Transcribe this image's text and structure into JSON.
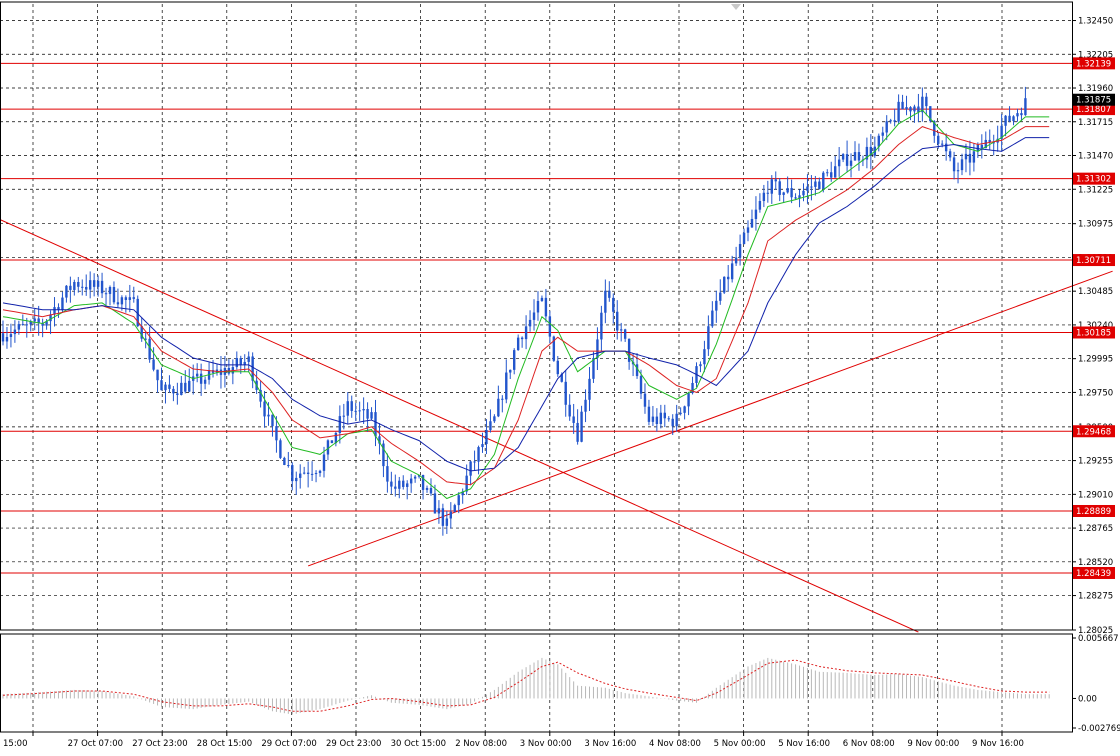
{
  "chart_data": {
    "type": "line",
    "instrument_view": "candlestick",
    "main_panel": {
      "ylim": [
        1.28025,
        1.3257
      ],
      "y_ticks": [
        "1.32450",
        "1.32205",
        "1.31960",
        "1.31715",
        "1.31470",
        "1.31225",
        "1.30975",
        "1.30730",
        "1.30485",
        "1.30240",
        "1.29995",
        "1.29750",
        "1.29500",
        "1.29255",
        "1.29010",
        "1.28765",
        "1.28520",
        "1.28275",
        "1.28025"
      ],
      "current_price": "1.31875",
      "horizontal_levels": [
        "1.32139",
        "1.31807",
        "1.31302",
        "1.30711",
        "1.30185",
        "1.29468",
        "1.28889",
        "1.28439"
      ],
      "level_color": "#e00000",
      "trendlines": [
        {
          "from_bar": -5,
          "from_price": 1.3106,
          "to_bar": 231,
          "to_price": 1.2801
        },
        {
          "from_bar": 77,
          "from_price": 1.2849,
          "to_bar": 280,
          "to_price": 1.3063
        }
      ],
      "price_series": {
        "name": "price",
        "color": "#2255cc",
        "points": [
          [
            0,
            1.3018
          ],
          [
            10,
            1.3025
          ],
          [
            18,
            1.3055
          ],
          [
            25,
            1.305
          ],
          [
            33,
            1.3038
          ],
          [
            40,
            1.2975
          ],
          [
            48,
            1.2982
          ],
          [
            55,
            1.299
          ],
          [
            62,
            1.2998
          ],
          [
            68,
            1.2945
          ],
          [
            73,
            1.2915
          ],
          [
            80,
            1.2922
          ],
          [
            87,
            1.2965
          ],
          [
            93,
            1.2955
          ],
          [
            98,
            1.2905
          ],
          [
            105,
            1.291
          ],
          [
            112,
            1.2878
          ],
          [
            118,
            1.292
          ],
          [
            124,
            1.2955
          ],
          [
            130,
            1.3015
          ],
          [
            136,
            1.304
          ],
          [
            140,
            1.299
          ],
          [
            145,
            1.2945
          ],
          [
            152,
            1.3045
          ],
          [
            157,
            1.301
          ],
          [
            163,
            1.2955
          ],
          [
            170,
            1.2955
          ],
          [
            175,
            1.299
          ],
          [
            180,
            1.304
          ],
          [
            188,
            1.3092
          ],
          [
            193,
            1.3125
          ],
          [
            200,
            1.3118
          ],
          [
            206,
            1.3128
          ],
          [
            213,
            1.3145
          ],
          [
            220,
            1.3152
          ],
          [
            226,
            1.318
          ],
          [
            232,
            1.3185
          ],
          [
            240,
            1.3135
          ],
          [
            246,
            1.315
          ],
          [
            252,
            1.3168
          ],
          [
            258,
            1.3185
          ]
        ]
      },
      "moving_averages": [
        {
          "name": "MA-fast",
          "color": "#22bb22",
          "points": [
            [
              0,
              1.303
            ],
            [
              10,
              1.3025
            ],
            [
              18,
              1.3038
            ],
            [
              25,
              1.304
            ],
            [
              33,
              1.3025
            ],
            [
              40,
              1.2995
            ],
            [
              48,
              1.2985
            ],
            [
              55,
              1.299
            ],
            [
              62,
              1.299
            ],
            [
              68,
              1.296
            ],
            [
              73,
              1.2935
            ],
            [
              80,
              1.293
            ],
            [
              87,
              1.2945
            ],
            [
              93,
              1.2948
            ],
            [
              98,
              1.2925
            ],
            [
              105,
              1.2915
            ],
            [
              112,
              1.2898
            ],
            [
              118,
              1.2905
            ],
            [
              124,
              1.293
            ],
            [
              130,
              1.2985
            ],
            [
              136,
              1.303
            ],
            [
              140,
              1.302
            ],
            [
              145,
              1.299
            ],
            [
              152,
              1.3005
            ],
            [
              157,
              1.3005
            ],
            [
              163,
              1.298
            ],
            [
              170,
              1.297
            ],
            [
              175,
              1.2978
            ],
            [
              180,
              1.301
            ],
            [
              188,
              1.3075
            ],
            [
              193,
              1.311
            ],
            [
              200,
              1.3115
            ],
            [
              206,
              1.312
            ],
            [
              213,
              1.3135
            ],
            [
              220,
              1.315
            ],
            [
              226,
              1.317
            ],
            [
              232,
              1.318
            ],
            [
              240,
              1.3155
            ],
            [
              246,
              1.315
            ],
            [
              252,
              1.316
            ],
            [
              258,
              1.3175
            ]
          ]
        },
        {
          "name": "MA-mid",
          "color": "#dd2222",
          "points": [
            [
              0,
              1.3035
            ],
            [
              10,
              1.303
            ],
            [
              18,
              1.3035
            ],
            [
              25,
              1.3038
            ],
            [
              33,
              1.303
            ],
            [
              40,
              1.3005
            ],
            [
              48,
              1.2992
            ],
            [
              55,
              1.299
            ],
            [
              62,
              1.2992
            ],
            [
              68,
              1.2975
            ],
            [
              73,
              1.2955
            ],
            [
              80,
              1.2942
            ],
            [
              87,
              1.2945
            ],
            [
              93,
              1.295
            ],
            [
              98,
              1.2938
            ],
            [
              105,
              1.2925
            ],
            [
              112,
              1.291
            ],
            [
              118,
              1.2908
            ],
            [
              124,
              1.292
            ],
            [
              130,
              1.2955
            ],
            [
              136,
              1.3005
            ],
            [
              140,
              1.3015
            ],
            [
              145,
              1.3005
            ],
            [
              152,
              1.3005
            ],
            [
              157,
              1.3005
            ],
            [
              163,
              1.2995
            ],
            [
              170,
              1.298
            ],
            [
              175,
              1.2975
            ],
            [
              180,
              1.2985
            ],
            [
              188,
              1.304
            ],
            [
              193,
              1.3085
            ],
            [
              200,
              1.31
            ],
            [
              206,
              1.311
            ],
            [
              213,
              1.3122
            ],
            [
              220,
              1.3138
            ],
            [
              226,
              1.3155
            ],
            [
              232,
              1.3168
            ],
            [
              240,
              1.316
            ],
            [
              246,
              1.3155
            ],
            [
              252,
              1.3158
            ],
            [
              258,
              1.3168
            ]
          ]
        },
        {
          "name": "MA-slow",
          "color": "#1122aa",
          "points": [
            [
              0,
              1.304
            ],
            [
              10,
              1.3035
            ],
            [
              18,
              1.3035
            ],
            [
              25,
              1.3038
            ],
            [
              33,
              1.3035
            ],
            [
              40,
              1.3015
            ],
            [
              48,
              1.3
            ],
            [
              55,
              1.2995
            ],
            [
              62,
              1.2995
            ],
            [
              68,
              1.2985
            ],
            [
              73,
              1.297
            ],
            [
              80,
              1.2958
            ],
            [
              87,
              1.2952
            ],
            [
              93,
              1.2955
            ],
            [
              98,
              1.2948
            ],
            [
              105,
              1.294
            ],
            [
              112,
              1.2925
            ],
            [
              118,
              1.2918
            ],
            [
              124,
              1.292
            ],
            [
              130,
              1.2935
            ],
            [
              136,
              1.2965
            ],
            [
              140,
              1.2985
            ],
            [
              145,
              1.3
            ],
            [
              152,
              1.3005
            ],
            [
              157,
              1.3005
            ],
            [
              163,
              1.3
            ],
            [
              170,
              1.2995
            ],
            [
              175,
              1.2988
            ],
            [
              180,
              1.298
            ],
            [
              188,
              1.3005
            ],
            [
              193,
              1.304
            ],
            [
              200,
              1.3075
            ],
            [
              206,
              1.3098
            ],
            [
              213,
              1.311
            ],
            [
              220,
              1.3125
            ],
            [
              226,
              1.314
            ],
            [
              232,
              1.3152
            ],
            [
              240,
              1.3155
            ],
            [
              246,
              1.3152
            ],
            [
              252,
              1.315
            ],
            [
              258,
              1.316
            ]
          ]
        }
      ]
    },
    "oscillator_panel": {
      "ylim": [
        -0.002769,
        0.005667
      ],
      "y_ticks": [
        "0.005667",
        "0.00",
        "-0.002769"
      ],
      "histogram_color": "#b8b8b8",
      "signal_color": "#dd2222",
      "histogram": [
        [
          0,
          0.0004
        ],
        [
          10,
          0.0006
        ],
        [
          18,
          0.0008
        ],
        [
          25,
          0.0007
        ],
        [
          33,
          0.0002
        ],
        [
          40,
          -0.0008
        ],
        [
          48,
          -0.001
        ],
        [
          55,
          -0.0006
        ],
        [
          62,
          -0.0003
        ],
        [
          68,
          -0.0012
        ],
        [
          73,
          -0.0015
        ],
        [
          80,
          -0.001
        ],
        [
          87,
          -0.0002
        ],
        [
          93,
          0.0003
        ],
        [
          98,
          -0.0004
        ],
        [
          105,
          -0.0006
        ],
        [
          112,
          -0.001
        ],
        [
          118,
          -0.0005
        ],
        [
          124,
          0.0008
        ],
        [
          130,
          0.0025
        ],
        [
          136,
          0.0038
        ],
        [
          140,
          0.0032
        ],
        [
          145,
          0.0012
        ],
        [
          152,
          0.001
        ],
        [
          157,
          0.0005
        ],
        [
          163,
          0.0002
        ],
        [
          170,
          -0.0002
        ],
        [
          175,
          -0.0004
        ],
        [
          180,
          0.001
        ],
        [
          188,
          0.003
        ],
        [
          193,
          0.0038
        ],
        [
          200,
          0.0032
        ],
        [
          206,
          0.0025
        ],
        [
          213,
          0.0024
        ],
        [
          220,
          0.0022
        ],
        [
          226,
          0.0023
        ],
        [
          232,
          0.002
        ],
        [
          240,
          0.0012
        ],
        [
          246,
          0.0008
        ],
        [
          252,
          0.0006
        ],
        [
          258,
          0.0004
        ]
      ],
      "signal": [
        [
          0,
          0.0003
        ],
        [
          10,
          0.0005
        ],
        [
          18,
          0.0007
        ],
        [
          25,
          0.0007
        ],
        [
          33,
          0.0004
        ],
        [
          40,
          -0.0003
        ],
        [
          48,
          -0.0007
        ],
        [
          55,
          -0.0007
        ],
        [
          62,
          -0.0005
        ],
        [
          68,
          -0.0008
        ],
        [
          73,
          -0.0012
        ],
        [
          80,
          -0.0012
        ],
        [
          87,
          -0.0007
        ],
        [
          93,
          -0.0001
        ],
        [
          98,
          0.0
        ],
        [
          105,
          -0.0003
        ],
        [
          112,
          -0.0007
        ],
        [
          118,
          -0.0006
        ],
        [
          124,
          0.0001
        ],
        [
          130,
          0.0015
        ],
        [
          136,
          0.003
        ],
        [
          140,
          0.0034
        ],
        [
          145,
          0.0024
        ],
        [
          152,
          0.0014
        ],
        [
          157,
          0.0009
        ],
        [
          163,
          0.0005
        ],
        [
          170,
          0.0001
        ],
        [
          175,
          -0.0002
        ],
        [
          180,
          0.0005
        ],
        [
          188,
          0.0022
        ],
        [
          193,
          0.0033
        ],
        [
          200,
          0.0036
        ],
        [
          206,
          0.003
        ],
        [
          213,
          0.0026
        ],
        [
          220,
          0.0024
        ],
        [
          226,
          0.0023
        ],
        [
          232,
          0.0022
        ],
        [
          240,
          0.0016
        ],
        [
          246,
          0.0011
        ],
        [
          252,
          0.0007
        ],
        [
          258,
          0.0006
        ]
      ]
    },
    "x_ticks": [
      "15:00",
      "27 Oct 07:00",
      "27 Oct 23:00",
      "28 Oct 15:00",
      "29 Oct 07:00",
      "29 Oct 23:00",
      "30 Oct 15:00",
      "2 Nov 08:00",
      "3 Nov 00:00",
      "3 Nov 16:00",
      "4 Nov 08:00",
      "5 Nov 00:00",
      "5 Nov 16:00",
      "6 Nov 08:00",
      "9 Nov 00:00",
      "9 Nov 16:00"
    ],
    "grid": true
  }
}
